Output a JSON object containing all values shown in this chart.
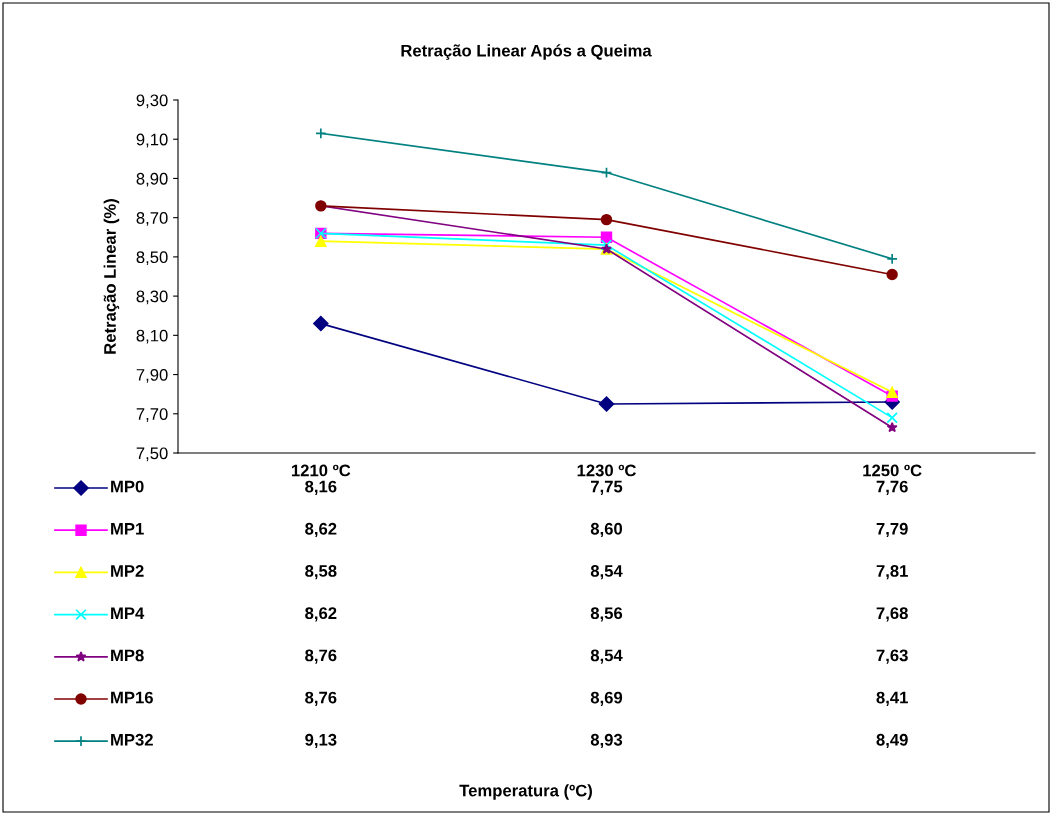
{
  "chart_data": {
    "type": "line",
    "title": "Retração Linear Após a Queima",
    "ylabel": "Retração Linear (%)",
    "annotations": [
      "Temperatura (ºC)"
    ],
    "categories": [
      "1210 ºC",
      "1230 ºC",
      "1250 ºC"
    ],
    "series": [
      {
        "name": "MP0",
        "color": "#000080",
        "marker": "diamond",
        "values": [
          8.16,
          7.75,
          7.76
        ],
        "value_labels": [
          "8,16",
          "7,75",
          "7,76"
        ]
      },
      {
        "name": "MP1",
        "color": "#ff00ff",
        "marker": "square",
        "values": [
          8.62,
          8.6,
          7.79
        ],
        "value_labels": [
          "8,62",
          "8,60",
          "7,79"
        ]
      },
      {
        "name": "MP2",
        "color": "#ffff00",
        "marker": "triangle",
        "values": [
          8.58,
          8.54,
          7.81
        ],
        "value_labels": [
          "8,58",
          "8,54",
          "7,81"
        ]
      },
      {
        "name": "MP4",
        "color": "#00ffff",
        "marker": "cross",
        "values": [
          8.62,
          8.56,
          7.68
        ],
        "value_labels": [
          "8,62",
          "8,56",
          "7,68"
        ]
      },
      {
        "name": "MP8",
        "color": "#800080",
        "marker": "star",
        "values": [
          8.76,
          8.54,
          7.63
        ],
        "value_labels": [
          "8,76",
          "8,54",
          "7,63"
        ]
      },
      {
        "name": "MP16",
        "color": "#800000",
        "marker": "circle",
        "values": [
          8.76,
          8.69,
          8.41
        ],
        "value_labels": [
          "8,76",
          "8,69",
          "8,41"
        ]
      },
      {
        "name": "MP32",
        "color": "#008080",
        "marker": "plus",
        "values": [
          9.13,
          8.93,
          8.49
        ],
        "value_labels": [
          "9,13",
          "8,93",
          "8,49"
        ]
      }
    ],
    "ylim": [
      7.5,
      9.3
    ],
    "yticks": [
      {
        "value": 7.5,
        "label": "7,50"
      },
      {
        "value": 7.7,
        "label": "7,70"
      },
      {
        "value": 7.9,
        "label": "7,90"
      },
      {
        "value": 8.1,
        "label": "8,10"
      },
      {
        "value": 8.3,
        "label": "8,30"
      },
      {
        "value": 8.5,
        "label": "8,50"
      },
      {
        "value": 8.7,
        "label": "8,70"
      },
      {
        "value": 8.9,
        "label": "8,90"
      },
      {
        "value": 9.1,
        "label": "9,10"
      },
      {
        "value": 9.3,
        "label": "9,30"
      }
    ],
    "grid": false,
    "legend": "bottom",
    "line_style": "solid"
  }
}
